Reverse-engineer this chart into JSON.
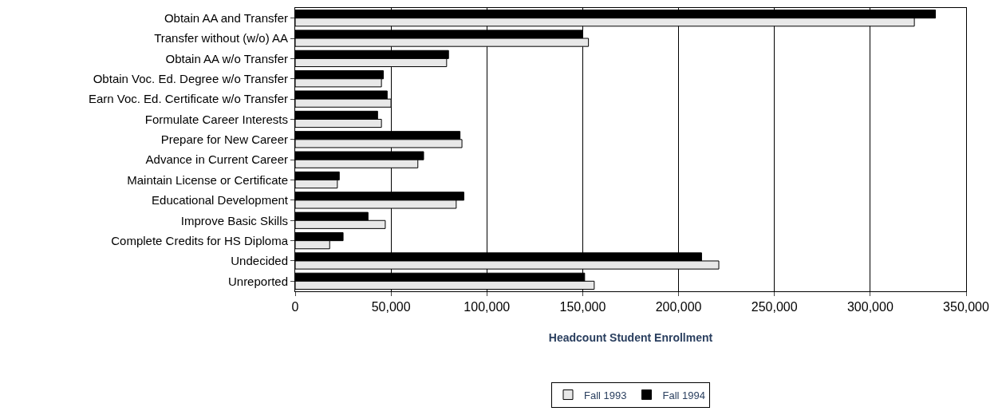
{
  "chart_data": {
    "type": "bar",
    "orientation": "horizontal",
    "xlabel": "Headcount Student Enrollment",
    "categories": [
      "Obtain AA and Transfer",
      "Transfer without (w/o) AA",
      "Obtain AA w/o Transfer",
      "Obtain Voc. Ed. Degree w/o Transfer",
      "Earn Voc. Ed. Certificate w/o Transfer",
      "Formulate Career Interests",
      "Prepare for New Career",
      "Advance in Current Career",
      "Maintain License or Certificate",
      "Educational Development",
      "Improve Basic Skills",
      "Complete Credits for HS Diploma",
      "Undecided",
      "Unreported"
    ],
    "series": [
      {
        "name": "Fall 1993",
        "color": "#e8e8e8",
        "values": [
          323000,
          153000,
          79000,
          45000,
          50000,
          45000,
          87000,
          64000,
          22000,
          84000,
          47000,
          18000,
          221000,
          156000
        ]
      },
      {
        "name": "Fall 1994",
        "color": "#000000",
        "values": [
          334000,
          150000,
          80000,
          46000,
          48000,
          43000,
          86000,
          67000,
          23000,
          88000,
          38000,
          25000,
          212000,
          151000
        ]
      }
    ],
    "xlim": [
      0,
      350000
    ],
    "xticks": [
      {
        "value": 0,
        "label": "0"
      },
      {
        "value": 50000,
        "label": "50,000"
      },
      {
        "value": 100000,
        "label": "100,000"
      },
      {
        "value": 150000,
        "label": "150,000"
      },
      {
        "value": 200000,
        "label": "200,000"
      },
      {
        "value": 250000,
        "label": "250,000"
      },
      {
        "value": 300000,
        "label": "300,000"
      },
      {
        "value": 350000,
        "label": "350,000"
      }
    ],
    "grid": "x",
    "legend": "bottom"
  }
}
